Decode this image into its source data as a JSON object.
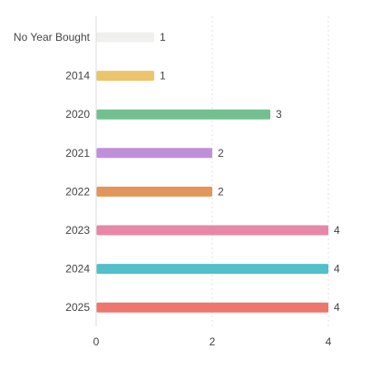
{
  "chart_data": {
    "type": "bar",
    "orientation": "horizontal",
    "title": "",
    "xlabel": "",
    "ylabel": "",
    "xlim": [
      0,
      4.6
    ],
    "x_ticks": [
      0,
      2,
      4
    ],
    "grid": "vertical dashed",
    "legend": "none",
    "categories": [
      "No Year Bought",
      "2014",
      "2020",
      "2021",
      "2022",
      "2023",
      "2024",
      "2025"
    ],
    "values": [
      1,
      1,
      3,
      2,
      2,
      4,
      4,
      4
    ],
    "data_labels": [
      "1",
      "1",
      "3",
      "2",
      "2",
      "4",
      "4",
      "4"
    ],
    "tick_labels": [
      "0",
      "2",
      "4"
    ],
    "colors": [
      "#f0f0ee",
      "#ecc46a",
      "#72c08f",
      "#bf8fdc",
      "#e3955a",
      "#e588a8",
      "#52bfcb",
      "#ee766c"
    ]
  }
}
